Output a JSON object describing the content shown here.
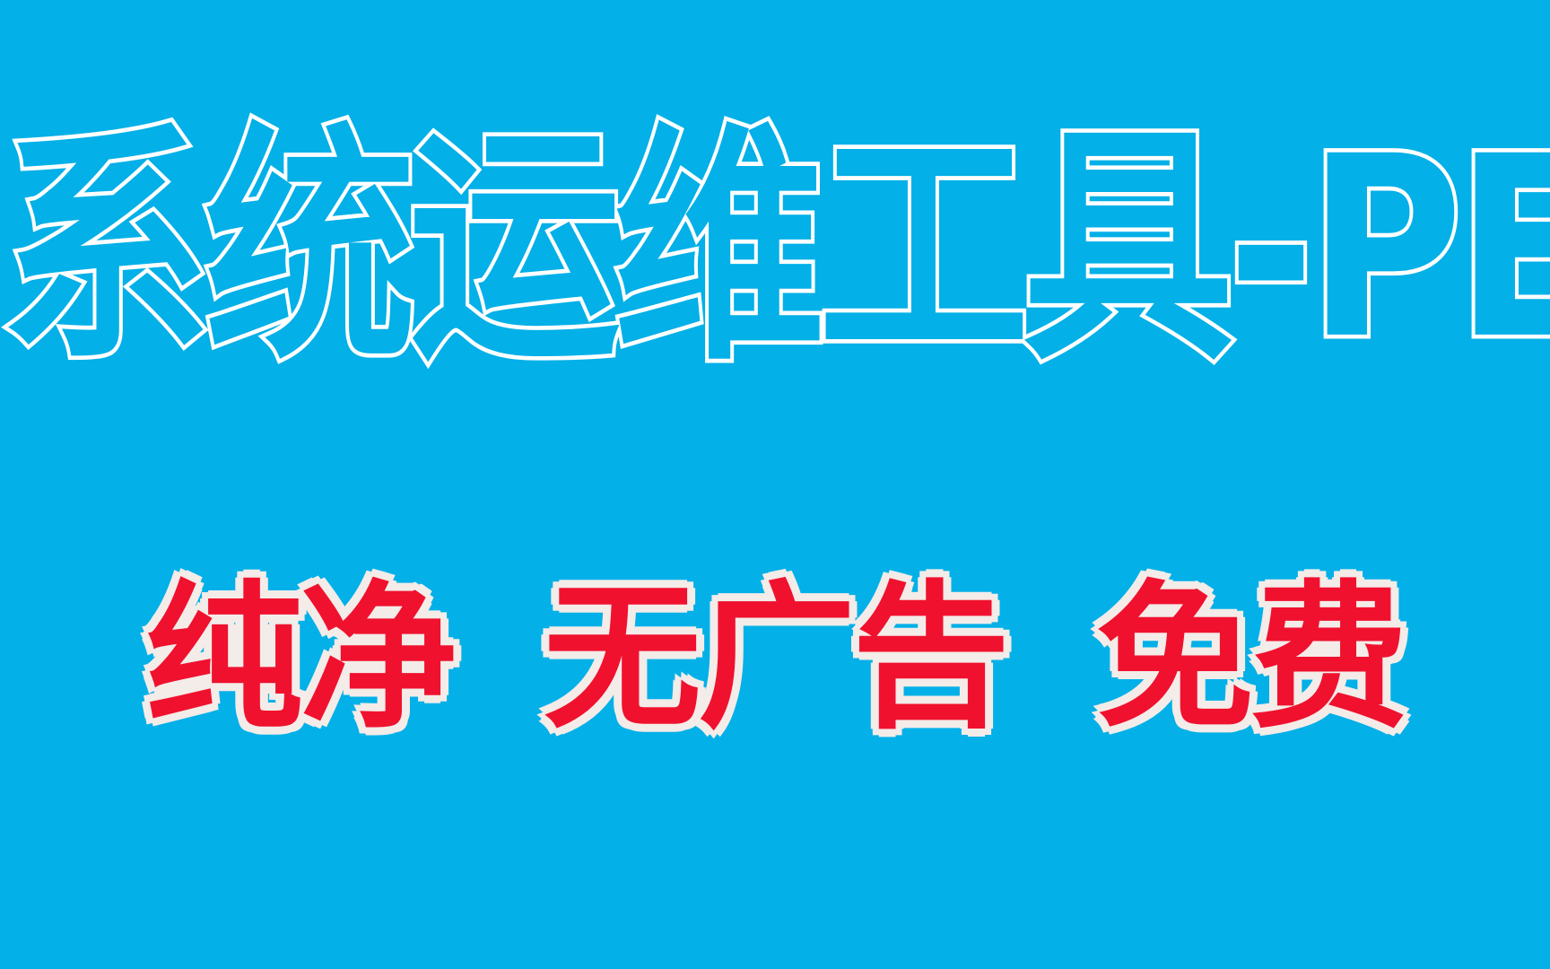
{
  "colors": {
    "background": "#03b0e8",
    "title_outline": "#ffffff",
    "tag_fill": "#f0112f",
    "tag_outline": "#f3ece8"
  },
  "title": "系统运维工具-PE",
  "tags": [
    "纯净",
    "无广告",
    "免费"
  ]
}
